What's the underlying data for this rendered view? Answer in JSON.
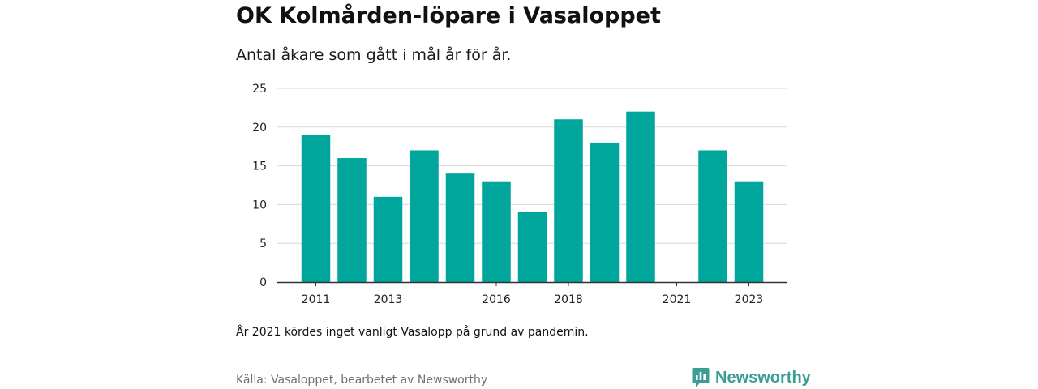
{
  "header": {
    "title": "OK Kolmården-löpare i Vasaloppet",
    "subtitle": "Antal åkare som gått i mål år för år."
  },
  "footer": {
    "note": "År 2021 kördes inget vanligt Vasalopp på grund av pandemin.",
    "source": "Källa: Vasaloppet, bearbetet av Newsworthy",
    "brand": "Newsworthy",
    "brand_icon": "newsworthy-logo-icon"
  },
  "colors": {
    "bar": "#00a59b",
    "grid": "#d9d9d9",
    "axis": "#333333",
    "brand": "#3b9d94"
  },
  "chart_data": {
    "type": "bar",
    "title": "OK Kolmården-löpare i Vasaloppet",
    "subtitle": "Antal åkare som gått i mål år för år.",
    "categories": [
      "2011",
      "2012",
      "2013",
      "2014",
      "2015",
      "2016",
      "2017",
      "2018",
      "2019",
      "2020",
      "2021",
      "2022",
      "2023"
    ],
    "values": [
      19,
      16,
      11,
      17,
      14,
      13,
      9,
      21,
      18,
      22,
      0,
      17,
      13
    ],
    "x_tick_labels": [
      "2011",
      "2013",
      "2016",
      "2018",
      "2021",
      "2023"
    ],
    "y_ticks": [
      0,
      5,
      10,
      15,
      20,
      25
    ],
    "ylim": [
      0,
      25
    ],
    "grid": true,
    "legend": "none"
  }
}
